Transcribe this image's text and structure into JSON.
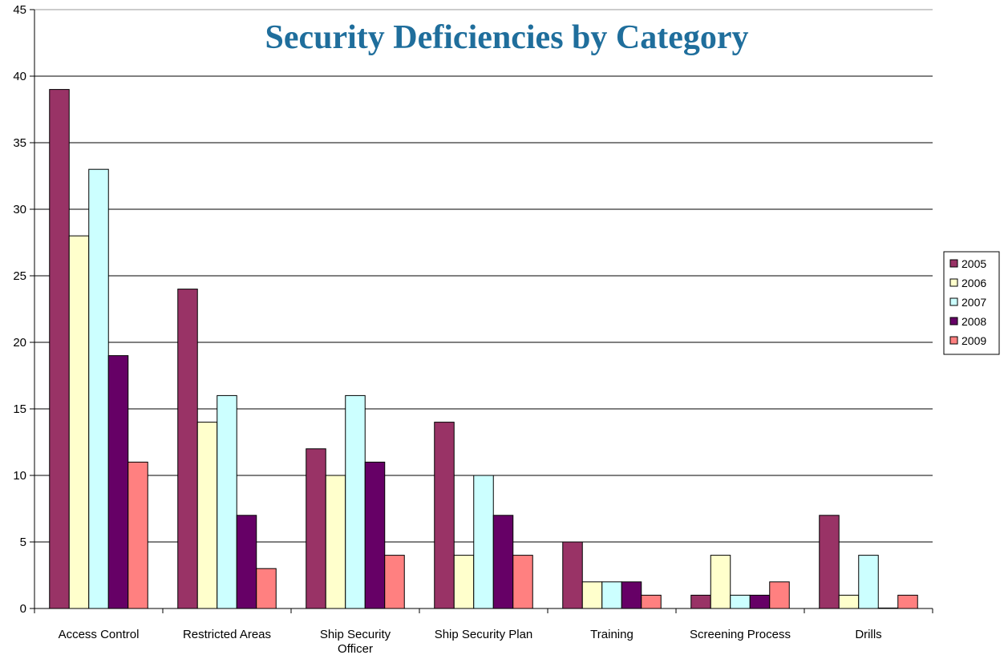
{
  "chart_data": {
    "type": "bar",
    "title": "Security Deficiencies by Category",
    "categories": [
      [
        "Access Control"
      ],
      [
        "Restricted Areas"
      ],
      [
        "Ship Security",
        "Officer"
      ],
      [
        "Ship Security Plan"
      ],
      [
        "Training"
      ],
      [
        "Screening Process"
      ],
      [
        "Drills"
      ]
    ],
    "series": [
      {
        "name": "2005",
        "color": "#993366",
        "values": [
          39,
          24,
          12,
          14,
          5,
          1,
          7
        ]
      },
      {
        "name": "2006",
        "color": "#FFFFCC",
        "values": [
          28,
          14,
          10,
          4,
          2,
          4,
          1
        ]
      },
      {
        "name": "2007",
        "color": "#CCFFFF",
        "values": [
          33,
          16,
          16,
          10,
          2,
          1,
          4
        ]
      },
      {
        "name": "2008",
        "color": "#660066",
        "values": [
          19,
          7,
          11,
          7,
          2,
          1,
          0
        ]
      },
      {
        "name": "2009",
        "color": "#FF8080",
        "values": [
          11,
          3,
          4,
          4,
          1,
          2,
          1
        ]
      }
    ],
    "ylim": [
      0,
      45
    ],
    "yticks": [
      0,
      5,
      10,
      15,
      20,
      25,
      30,
      35,
      40,
      45
    ],
    "grid": true,
    "legend_position": "right",
    "title_color": "#1F6E9C"
  }
}
